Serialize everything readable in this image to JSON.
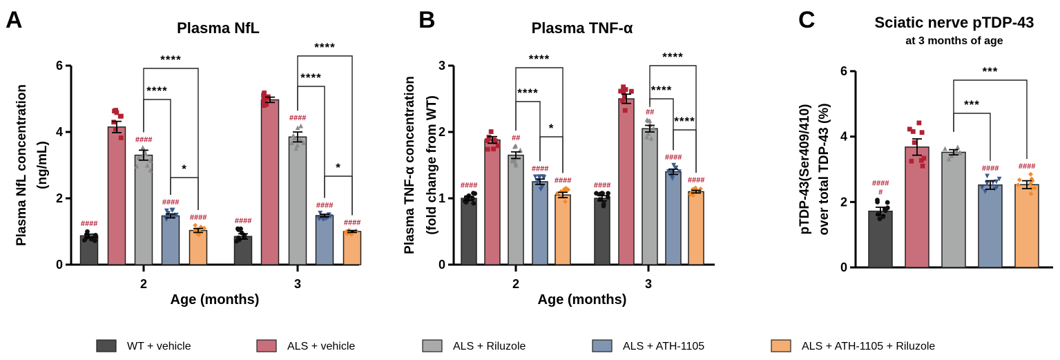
{
  "legend": [
    {
      "label": "WT + vehicle",
      "color": "#4d4d4d"
    },
    {
      "label": "ALS + vehicle",
      "color": "#c96f7b"
    },
    {
      "label": "ALS + Riluzole",
      "color": "#a9abaa"
    },
    {
      "label": "ALS + ATH-1105",
      "color": "#8295b0"
    },
    {
      "label": "ALS + ATH-1105 + Riluzole",
      "color": "#f4ad72"
    }
  ],
  "marker_colors": [
    "#111111",
    "#b22234",
    "#8a8a8a",
    "#3c5a8c",
    "#f28a2a"
  ],
  "hash_color": "#b0182f",
  "chart_data": [
    {
      "type": "bar",
      "panel": "A",
      "title": "Plasma NfL",
      "ylabel": [
        "Plasma NfL concentration",
        "(ng/mL)"
      ],
      "xlabel": "Age (months)",
      "categories": [
        "2",
        "3"
      ],
      "ylim": [
        0,
        6
      ],
      "yticks": [
        0,
        2,
        4,
        6
      ],
      "series": [
        {
          "name": "WT + vehicle",
          "values": [
            0.87,
            0.85
          ],
          "sem": [
            0.05,
            0.08
          ]
        },
        {
          "name": "ALS + vehicle",
          "values": [
            4.15,
            4.97
          ],
          "sem": [
            0.17,
            0.08
          ]
        },
        {
          "name": "ALS + Riluzole",
          "values": [
            3.3,
            3.85
          ],
          "sem": [
            0.15,
            0.15
          ]
        },
        {
          "name": "ALS + ATH-1105",
          "values": [
            1.47,
            1.48
          ],
          "sem": [
            0.06,
            0.04
          ]
        },
        {
          "name": "ALS + ATH-1105 + Riluzole",
          "values": [
            1.03,
            1.0
          ],
          "sem": [
            0.06,
            0.03
          ]
        }
      ],
      "hash_labels": [
        [
          "####",
          "",
          "####",
          "####",
          "####"
        ],
        [
          "####",
          "",
          "####",
          "####",
          "####"
        ]
      ],
      "brackets": [
        {
          "group": 0,
          "from": 2,
          "to": 3,
          "label": "****"
        },
        {
          "group": 0,
          "from": 2,
          "to": 4,
          "label": "****"
        },
        {
          "group": 0,
          "from": 3,
          "to": 4,
          "label": "*"
        },
        {
          "group": 1,
          "from": 2,
          "to": 3,
          "label": "****"
        },
        {
          "group": 1,
          "from": 2,
          "to": 4,
          "label": "****"
        },
        {
          "group": 1,
          "from": 3,
          "to": 4,
          "label": "*"
        }
      ]
    },
    {
      "type": "bar",
      "panel": "B",
      "title": "Plasma TNF-α",
      "ylabel": [
        "Plasma TNF-α concentration",
        "(fold change from WT)"
      ],
      "xlabel": "Age (months)",
      "categories": [
        "2",
        "3"
      ],
      "ylim": [
        0,
        3
      ],
      "yticks": [
        0,
        1,
        2,
        3
      ],
      "series": [
        {
          "name": "WT + vehicle",
          "values": [
            1.0,
            1.0
          ],
          "sem": [
            0.03,
            0.04
          ]
        },
        {
          "name": "ALS + vehicle",
          "values": [
            1.88,
            2.5
          ],
          "sem": [
            0.05,
            0.07
          ]
        },
        {
          "name": "ALS + Riluzole",
          "values": [
            1.65,
            2.05
          ],
          "sem": [
            0.05,
            0.05
          ]
        },
        {
          "name": "ALS + ATH-1105",
          "values": [
            1.25,
            1.4
          ],
          "sem": [
            0.04,
            0.04
          ]
        },
        {
          "name": "ALS + ATH-1105 + Riluzole",
          "values": [
            1.05,
            1.1
          ],
          "sem": [
            0.04,
            0.02
          ]
        }
      ],
      "hash_labels": [
        [
          "####",
          "",
          "##",
          "####",
          "####"
        ],
        [
          "####",
          "",
          "##",
          "####",
          "####"
        ]
      ],
      "brackets": [
        {
          "group": 0,
          "from": 2,
          "to": 3,
          "label": "****"
        },
        {
          "group": 0,
          "from": 2,
          "to": 4,
          "label": "****"
        },
        {
          "group": 0,
          "from": 3,
          "to": 4,
          "label": "*"
        },
        {
          "group": 1,
          "from": 2,
          "to": 3,
          "label": "****"
        },
        {
          "group": 1,
          "from": 2,
          "to": 4,
          "label": "****"
        },
        {
          "group": 1,
          "from": 3,
          "to": 4,
          "label": "****"
        }
      ]
    },
    {
      "type": "bar",
      "panel": "C",
      "title": "Sciatic nerve pTDP-43",
      "subtitle": "at 3 months of age",
      "ylabel": [
        "pTDP-43(Ser409/410)",
        "over total TDP-43 (%)"
      ],
      "xlabel": "",
      "categories": [
        ""
      ],
      "ylim": [
        0,
        6
      ],
      "yticks": [
        0,
        2,
        4,
        6
      ],
      "series": [
        {
          "name": "WT + vehicle",
          "values": [
            1.72
          ],
          "sem": [
            0.12
          ]
        },
        {
          "name": "ALS + vehicle",
          "values": [
            3.68
          ],
          "sem": [
            0.25
          ]
        },
        {
          "name": "ALS + Riluzole",
          "values": [
            3.52
          ],
          "sem": [
            0.08
          ]
        },
        {
          "name": "ALS + ATH-1105",
          "values": [
            2.52
          ],
          "sem": [
            0.13
          ]
        },
        {
          "name": "ALS + ATH-1105 + Riluzole",
          "values": [
            2.53
          ],
          "sem": [
            0.12
          ]
        }
      ],
      "hash_labels": [
        [
          "####\n#",
          "",
          "",
          "####",
          "####"
        ]
      ],
      "brackets": [
        {
          "group": 0,
          "from": 2,
          "to": 3,
          "label": "***"
        },
        {
          "group": 0,
          "from": 2,
          "to": 4,
          "label": "***"
        }
      ]
    }
  ]
}
